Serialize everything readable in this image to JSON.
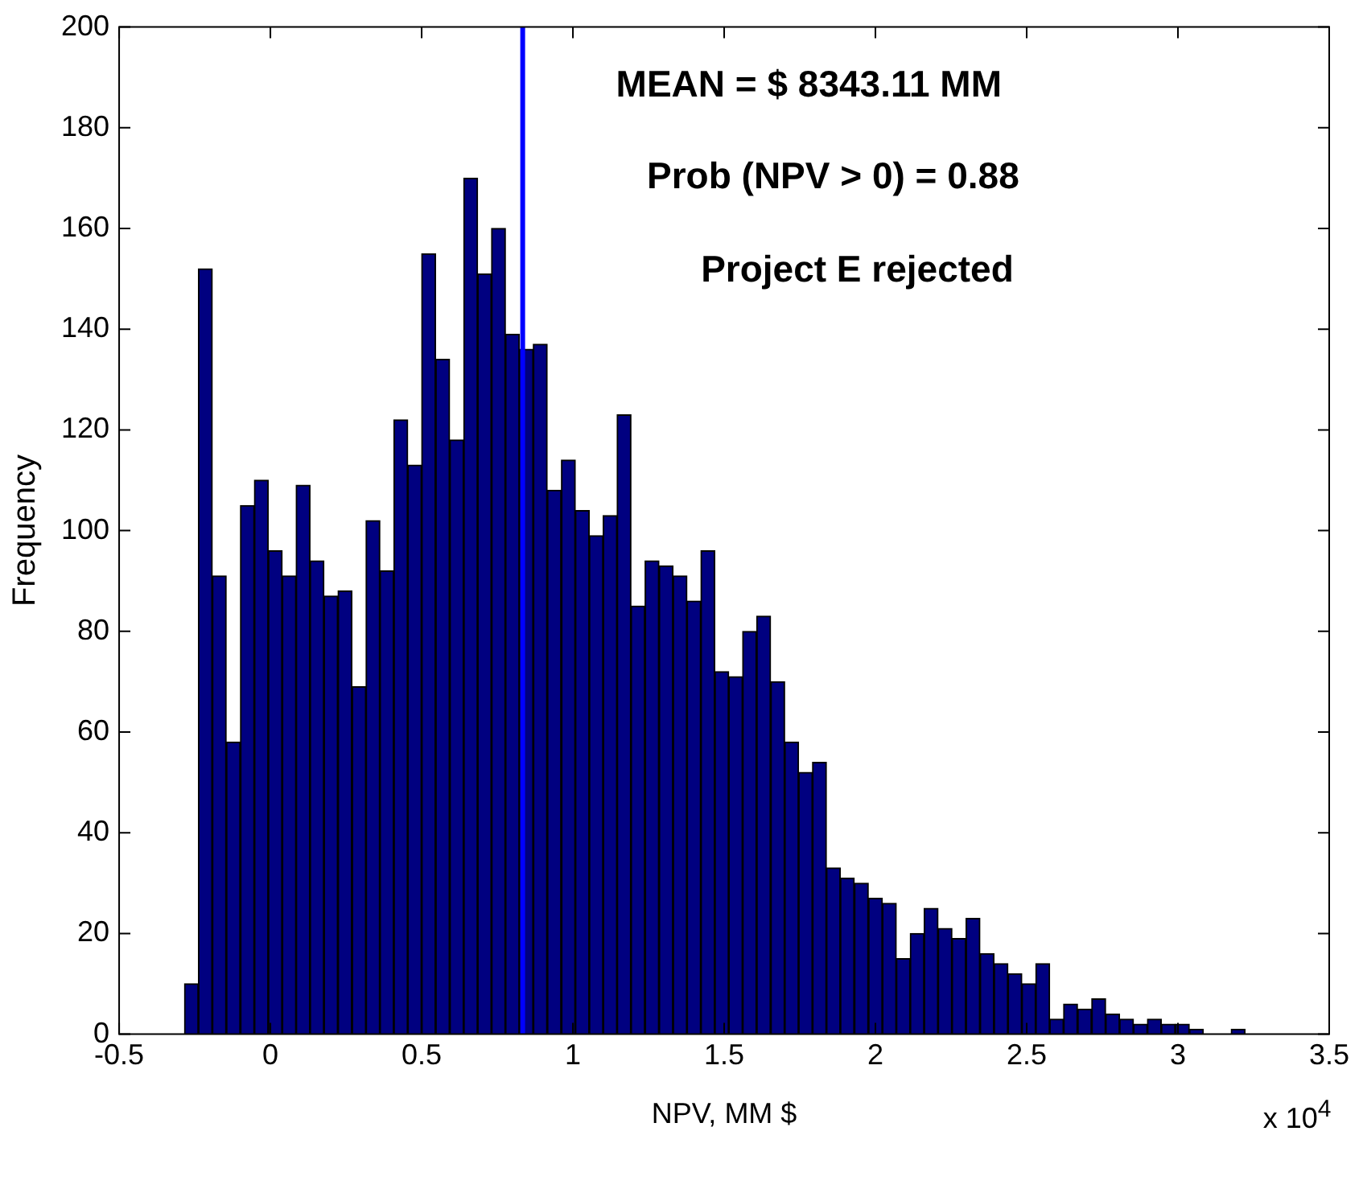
{
  "chart_data": {
    "type": "histogram",
    "xlabel": "NPV, MM $",
    "ylabel": "Frequency",
    "bins": [
      -0.284,
      -0.238,
      -0.192,
      -0.146,
      -0.099,
      -0.053,
      -0.007,
      0.039,
      0.085,
      0.131,
      0.177,
      0.223,
      0.27,
      0.316,
      0.362,
      0.408,
      0.454,
      0.5,
      0.546,
      0.593,
      0.639,
      0.685,
      0.731,
      0.777,
      0.823,
      0.869,
      0.915,
      0.962,
      1.008,
      1.054,
      1.1,
      1.146,
      1.192,
      1.238,
      1.285,
      1.331,
      1.377,
      1.423,
      1.469,
      1.515,
      1.561,
      1.607,
      1.654,
      1.7,
      1.746,
      1.792,
      1.838,
      1.884,
      1.93,
      1.977,
      2.023,
      2.069,
      2.115,
      2.161,
      2.207,
      2.253,
      2.299,
      2.346,
      2.392,
      2.438,
      2.484,
      2.53,
      2.576,
      2.622,
      2.668,
      2.715,
      2.761,
      2.807,
      2.853,
      2.899,
      2.945,
      2.991,
      3.038,
      3.084,
      3.13,
      3.176,
      3.222
    ],
    "values": [
      10,
      152,
      91,
      58,
      105,
      110,
      96,
      91,
      109,
      94,
      87,
      88,
      69,
      102,
      92,
      122,
      113,
      155,
      134,
      118,
      170,
      151,
      160,
      139,
      136,
      137,
      108,
      114,
      104,
      99,
      103,
      123,
      85,
      94,
      93,
      91,
      86,
      96,
      72,
      71,
      80,
      83,
      70,
      58,
      52,
      54,
      33,
      31,
      30,
      27,
      26,
      15,
      20,
      25,
      21,
      19,
      23,
      16,
      14,
      12,
      10,
      14,
      3,
      6,
      5,
      7,
      4,
      3,
      2,
      3,
      2,
      2,
      1,
      0,
      0,
      1
    ],
    "color": "#000080",
    "xlim": [
      -0.5,
      3.5
    ],
    "xticks": [
      {
        "value": -0.5,
        "label": "-0.5"
      },
      0,
      {
        "value": 0.5,
        "label": "0.5"
      },
      1,
      {
        "value": 1.5,
        "label": "1.5"
      },
      2,
      {
        "value": 2.5,
        "label": "2.5"
      },
      3,
      {
        "value": 3.5,
        "label": "3.5"
      }
    ],
    "ylim": [
      0,
      200
    ],
    "yticks": [
      0,
      20,
      40,
      60,
      80,
      100,
      120,
      140,
      160,
      180,
      200
    ],
    "ref_lines": [
      {
        "axis": "x",
        "value": 0.834,
        "color": "#0000ff"
      }
    ],
    "annotations": [
      "MEAN = $ 8343.11 MM",
      "Prob (NPV > 0) = 0.88",
      "Project E rejected",
      "x 10$^{4}$"
    ],
    "grid": false,
    "legend": false
  }
}
